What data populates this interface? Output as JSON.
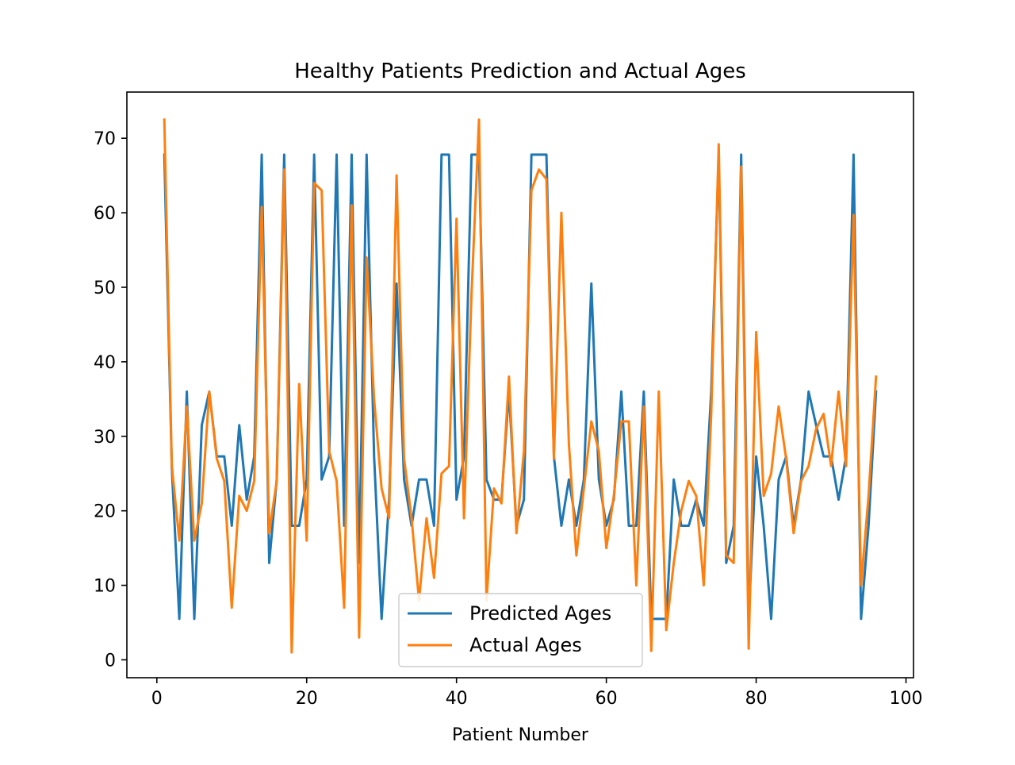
{
  "chart_data": {
    "type": "line",
    "title": "Healthy Patients Prediction and Actual Ages",
    "xlabel": "Patient Number",
    "ylabel": "",
    "xlim": [
      -4,
      101
    ],
    "ylim": [
      -2.4,
      76.2
    ],
    "xticks": [
      0,
      20,
      40,
      60,
      80,
      100
    ],
    "yticks": [
      0,
      10,
      20,
      30,
      40,
      50,
      60,
      70
    ],
    "grid": false,
    "legend_position": "lower center",
    "x": [
      1,
      2,
      3,
      4,
      5,
      6,
      7,
      8,
      9,
      10,
      11,
      12,
      13,
      14,
      15,
      16,
      17,
      18,
      19,
      20,
      21,
      22,
      23,
      24,
      25,
      26,
      27,
      28,
      29,
      30,
      31,
      32,
      33,
      34,
      35,
      36,
      37,
      38,
      39,
      40,
      41,
      42,
      43,
      44,
      45,
      46,
      47,
      48,
      49,
      50,
      51,
      52,
      53,
      54,
      55,
      56,
      57,
      58,
      59,
      60,
      61,
      62,
      63,
      64,
      65,
      66,
      67,
      68,
      69,
      70,
      71,
      72,
      73,
      74,
      75,
      76,
      77,
      78,
      79,
      80,
      81,
      82,
      83,
      84,
      85,
      86,
      87,
      88,
      89,
      90,
      91,
      92,
      93,
      94,
      95,
      96
    ],
    "series": [
      {
        "name": "Predicted Ages",
        "color": "#1f77b4",
        "values": [
          67.8,
          25.7,
          5.5,
          36.0,
          5.5,
          31.5,
          36.0,
          27.3,
          27.3,
          18.0,
          31.5,
          21.5,
          27.3,
          67.8,
          13.0,
          24.2,
          67.8,
          18.0,
          18.0,
          24.2,
          67.8,
          24.2,
          27.3,
          67.8,
          18.0,
          67.8,
          13.0,
          67.8,
          27.3,
          5.5,
          21.5,
          50.5,
          24.2,
          18.0,
          24.2,
          24.2,
          18.0,
          67.8,
          67.8,
          21.5,
          27.3,
          67.8,
          67.8,
          24.2,
          21.5,
          21.5,
          36.0,
          18.0,
          21.5,
          67.8,
          67.8,
          67.8,
          27.3,
          18.0,
          24.2,
          18.0,
          24.2,
          50.5,
          24.2,
          18.0,
          21.5,
          36.0,
          18.0,
          18.0,
          36.0,
          5.5,
          5.5,
          5.5,
          24.2,
          18.0,
          18.0,
          21.5,
          18.0,
          36.0,
          67.8,
          13.0,
          18.0,
          67.8,
          5.5,
          27.3,
          18.0,
          5.5,
          24.2,
          27.3,
          18.0,
          24.2,
          36.0,
          31.5,
          27.3,
          27.3,
          21.5,
          27.3,
          67.8,
          5.5,
          18.0,
          36.0
        ]
      },
      {
        "name": "Actual Ages",
        "color": "#ff7f0e",
        "values": [
          72.5,
          26.0,
          16.0,
          34.0,
          16.0,
          21.0,
          36.0,
          27.0,
          24.0,
          7.0,
          22.0,
          20.0,
          24.0,
          60.8,
          17.0,
          24.0,
          65.8,
          1.0,
          37.0,
          16.0,
          64.0,
          63.0,
          28.0,
          24.0,
          7.0,
          61.0,
          3.0,
          54.0,
          35.0,
          23.0,
          19.0,
          65.0,
          27.0,
          19.0,
          8.0,
          19.0,
          11.0,
          25.0,
          26.0,
          59.2,
          19.0,
          49.0,
          72.5,
          8.0,
          23.0,
          21.0,
          38.0,
          17.0,
          28.0,
          63.0,
          65.8,
          64.5,
          27.0,
          60.0,
          29.0,
          14.0,
          23.0,
          32.0,
          28.0,
          15.0,
          22.0,
          32.0,
          32.0,
          10.0,
          34.0,
          1.2,
          36.0,
          4.0,
          13.0,
          20.0,
          24.0,
          22.0,
          10.0,
          33.0,
          69.2,
          14.0,
          13.0,
          66.2,
          1.5,
          44.0,
          22.0,
          25.0,
          34.0,
          27.0,
          17.0,
          24.0,
          26.0,
          31.0,
          33.0,
          26.0,
          36.0,
          26.0,
          59.7,
          10.0,
          22.0,
          38.0
        ]
      }
    ]
  }
}
